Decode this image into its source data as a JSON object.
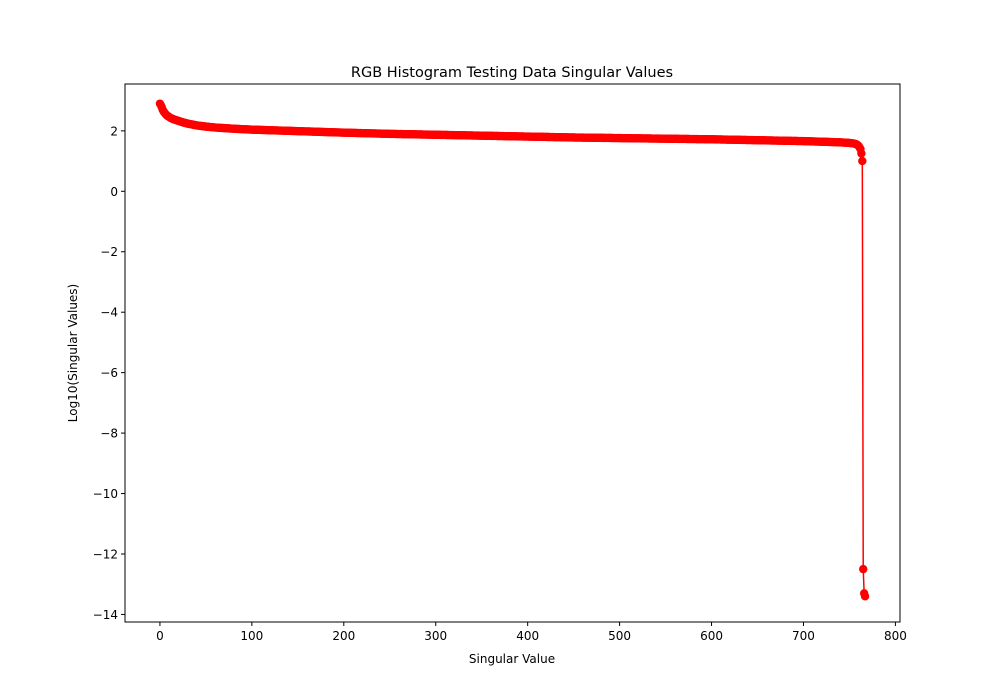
{
  "chart_data": {
    "type": "line",
    "title": "RGB Histogram Testing Data Singular Values",
    "xlabel": "Singular Value",
    "ylabel": "Log10(Singular Values)",
    "xlim": [
      -38,
      805
    ],
    "ylim": [
      -14.25,
      3.55
    ],
    "xticks": [
      0,
      100,
      200,
      300,
      400,
      500,
      600,
      700,
      800
    ],
    "yticks": [
      -14,
      -12,
      -10,
      -8,
      -6,
      -4,
      -2,
      0,
      2
    ],
    "ytick_labels": [
      "−14",
      "−12",
      "−10",
      "−8",
      "−6",
      "−4",
      "−2",
      "0",
      "2"
    ],
    "grid": false,
    "legend": "none",
    "color": "#ff0000",
    "marker": "circle",
    "n_points": 768,
    "series": [
      {
        "x": [
          0,
          1,
          2,
          3,
          4,
          5,
          6,
          8,
          10,
          12,
          15,
          20,
          25,
          30,
          40,
          50,
          60,
          80,
          100,
          120,
          150,
          200,
          250,
          300,
          350,
          400,
          450,
          500,
          550,
          600,
          650,
          700,
          720,
          740,
          750,
          755,
          758,
          760,
          762,
          763,
          764,
          765,
          766,
          767
        ],
        "y": [
          2.9,
          2.85,
          2.78,
          2.7,
          2.64,
          2.6,
          2.56,
          2.5,
          2.46,
          2.42,
          2.38,
          2.33,
          2.28,
          2.24,
          2.18,
          2.14,
          2.11,
          2.07,
          2.04,
          2.02,
          1.99,
          1.94,
          1.9,
          1.87,
          1.84,
          1.81,
          1.78,
          1.76,
          1.74,
          1.72,
          1.69,
          1.66,
          1.64,
          1.62,
          1.6,
          1.58,
          1.55,
          1.5,
          1.4,
          1.25,
          1.0,
          -12.5,
          -13.3,
          -13.4
        ]
      }
    ]
  }
}
